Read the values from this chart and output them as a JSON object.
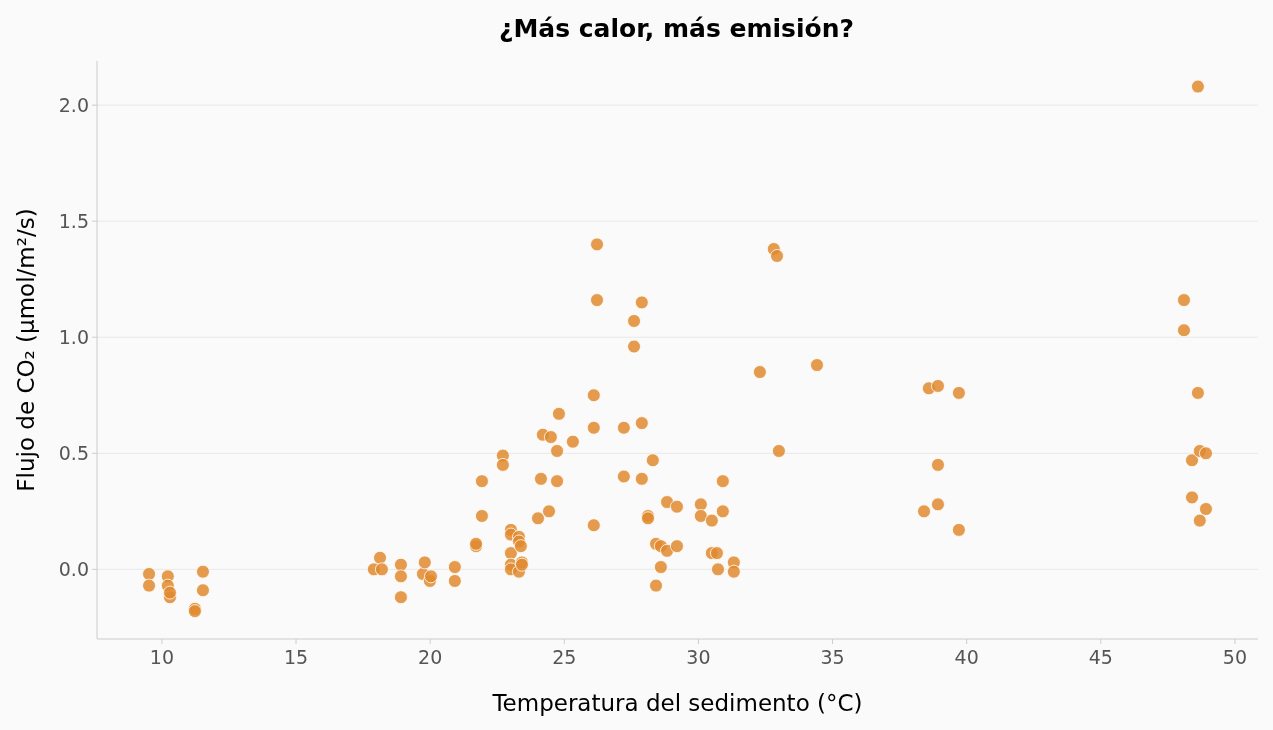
{
  "chart_data": {
    "type": "scatter",
    "title": "¿Más calor, más emisión?",
    "xlabel": "Temperatura del sedimento (°C)",
    "ylabel": "Flujo de CO₂ (µmol/m²/s)",
    "xlim": [
      7.58,
      50.86
    ],
    "ylim": [
      -0.3,
      2.19
    ],
    "xticks": [
      10,
      15,
      20,
      25,
      30,
      35,
      40,
      45,
      50
    ],
    "yticks": [
      {
        "value": 0,
        "label": "0.0"
      },
      0.5,
      {
        "value": 1,
        "label": "1.0"
      },
      1.5,
      {
        "value": 2,
        "label": "2.0"
      }
    ],
    "grid": "y",
    "marker": "circle",
    "series": [
      {
        "color": "#e08a2e",
        "x": [
          9.52,
          9.52,
          10.22,
          10.22,
          10.3,
          10.3,
          11.53,
          11.53,
          11.23,
          11.23,
          17.9,
          18.13,
          18.2,
          18.91,
          18.91,
          18.91,
          19.73,
          19.8,
          19.99,
          20.03,
          20.92,
          20.92,
          21.71,
          21.71,
          21.93,
          21.93,
          22.71,
          22.71,
          23.01,
          23.01,
          23.01,
          23.01,
          23.01,
          23.31,
          23.31,
          23.31,
          23.38,
          23.42,
          23.42,
          24.02,
          24.13,
          24.2,
          24.43,
          24.5,
          24.73,
          24.73,
          24.8,
          25.32,
          26.1,
          26.1,
          26.1,
          26.22,
          26.22,
          27.22,
          27.22,
          27.6,
          27.6,
          27.89,
          27.89,
          27.89,
          28.12,
          28.12,
          28.3,
          28.42,
          28.42,
          28.6,
          28.6,
          28.83,
          28.83,
          29.2,
          29.2,
          30.09,
          30.09,
          30.5,
          30.5,
          30.69,
          30.73,
          30.91,
          30.91,
          31.32,
          31.32,
          32.29,
          32.81,
          32.93,
          33.0,
          34.42,
          38.41,
          38.59,
          38.93,
          38.93,
          38.93,
          39.71,
          39.71,
          48.1,
          48.1,
          48.4,
          48.4,
          48.62,
          48.62,
          48.69,
          48.69,
          48.92,
          48.92
        ],
        "values": [
          -0.02,
          -0.07,
          -0.03,
          -0.07,
          -0.12,
          -0.1,
          -0.01,
          -0.09,
          -0.17,
          -0.18,
          0,
          0.05,
          0,
          0.02,
          -0.03,
          -0.12,
          -0.02,
          0.03,
          -0.05,
          -0.03,
          0.01,
          -0.05,
          0.1,
          0.11,
          0.38,
          0.23,
          0.49,
          0.45,
          0.17,
          0.15,
          0.07,
          0.02,
          0,
          0.14,
          0.12,
          -0.01,
          0.1,
          0.03,
          0.02,
          0.22,
          0.39,
          0.58,
          0.25,
          0.57,
          0.51,
          0.38,
          0.67,
          0.55,
          0.75,
          0.61,
          0.19,
          1.4,
          1.16,
          0.61,
          0.4,
          1.07,
          0.96,
          1.15,
          0.63,
          0.39,
          0.23,
          0.22,
          0.47,
          0.11,
          -0.07,
          0.01,
          0.1,
          0.29,
          0.08,
          0.27,
          0.1,
          0.28,
          0.23,
          0.21,
          0.07,
          0.07,
          0,
          0.38,
          0.25,
          0.03,
          -0.01,
          0.85,
          1.38,
          1.35,
          0.51,
          0.88,
          0.25,
          0.78,
          0.79,
          0.45,
          0.28,
          0.76,
          0.17,
          1.16,
          1.03,
          0.47,
          0.31,
          2.08,
          0.76,
          0.51,
          0.21,
          0.5,
          0.26
        ]
      }
    ]
  }
}
